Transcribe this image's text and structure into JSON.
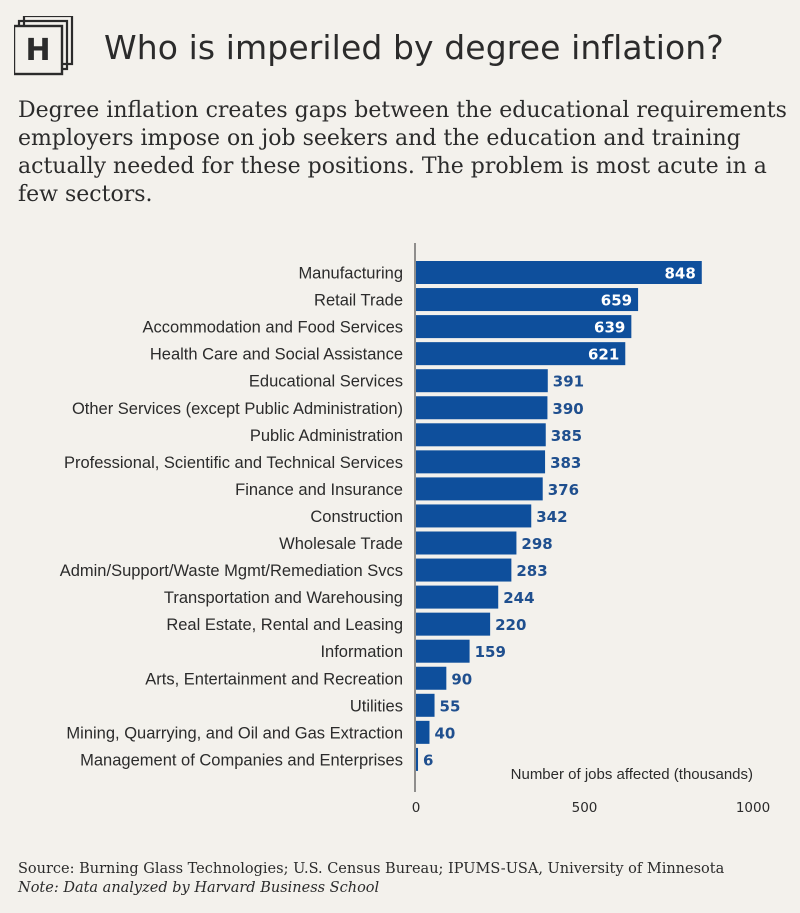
{
  "title": "Who is imperiled by degree inflation?",
  "subtitle": "Degree inflation creates gaps between the educational requirements employers impose on job seekers and the education and training actually needed for these positions. The problem is most acute in a few sectors.",
  "logo_letter": "H",
  "source": "Source: Burning Glass Technologies; U.S. Census Bureau; IPUMS-USA, University of Minnesota",
  "note": "Note: Data analyzed by Harvard Business School",
  "colors": {
    "bar": "#0e4f9c",
    "label_inside": "#ffffff",
    "label_outside": "#1f4f8e",
    "background": "#f3f1ec"
  },
  "chart_data": {
    "type": "bar",
    "orientation": "horizontal",
    "title": "",
    "xlabel": "Number of jobs affected (thousands)",
    "ylabel": "",
    "xlim": [
      0,
      1000
    ],
    "xticks": [
      0,
      500,
      1000
    ],
    "xtick_labels": [
      "0",
      "500",
      "1000"
    ],
    "grid": false,
    "categories": [
      "Manufacturing",
      "Retail Trade",
      "Accommodation and Food Services",
      "Health Care and Social Assistance",
      "Educational Services",
      "Other Services (except Public Administration)",
      "Public Administration",
      "Professional, Scientific and Technical Services",
      "Finance and Insurance",
      "Construction",
      "Wholesale Trade",
      "Admin/Support/Waste Mgmt/Remediation Svcs",
      "Transportation and Warehousing",
      "Real Estate, Rental and Leasing",
      "Information",
      "Arts, Entertainment and Recreation",
      "Utilities",
      "Mining, Quarrying, and Oil and Gas Extraction",
      "Management of Companies and Enterprises"
    ],
    "values": [
      848,
      659,
      639,
      621,
      391,
      390,
      385,
      383,
      376,
      342,
      298,
      283,
      244,
      220,
      159,
      90,
      55,
      40,
      6
    ],
    "data_labels": [
      "848",
      "659",
      "639",
      "621",
      "391",
      "390",
      "385",
      "383",
      "376",
      "342",
      "298",
      "283",
      "244",
      "220",
      "159",
      "90",
      "55",
      "40",
      "6"
    ]
  }
}
